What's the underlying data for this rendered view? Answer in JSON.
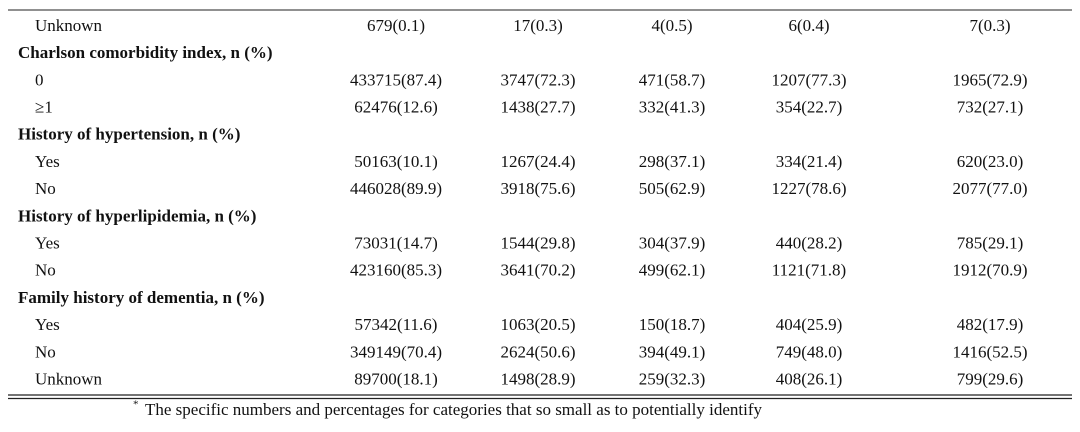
{
  "table": {
    "rows": [
      {
        "label": "Unknown",
        "cells": [
          "679(0.1)",
          "17(0.3)",
          "4(0.5)",
          "6(0.4)",
          "7(0.3)"
        ]
      },
      {
        "label": "Charlson comorbidity index, n (%)"
      },
      {
        "label": "0",
        "cells": [
          "433715(87.4)",
          "3747(72.3)",
          "471(58.7)",
          "1207(77.3)",
          "1965(72.9)"
        ]
      },
      {
        "label": "≥1",
        "cells": [
          "62476(12.6)",
          "1438(27.7)",
          "332(41.3)",
          "354(22.7)",
          "732(27.1)"
        ]
      },
      {
        "label": "History of hypertension, n (%)"
      },
      {
        "label": "Yes",
        "cells": [
          "50163(10.1)",
          "1267(24.4)",
          "298(37.1)",
          "334(21.4)",
          "620(23.0)"
        ]
      },
      {
        "label": "No",
        "cells": [
          "446028(89.9)",
          "3918(75.6)",
          "505(62.9)",
          "1227(78.6)",
          "2077(77.0)"
        ]
      },
      {
        "label": "History of hyperlipidemia, n (%)"
      },
      {
        "label": "Yes",
        "cells": [
          "73031(14.7)",
          "1544(29.8)",
          "304(37.9)",
          "440(28.2)",
          "785(29.1)"
        ]
      },
      {
        "label": "No",
        "cells": [
          "423160(85.3)",
          "3641(70.2)",
          "499(62.1)",
          "1121(71.8)",
          "1912(70.9)"
        ]
      },
      {
        "label": "Family history of dementia, n (%)"
      },
      {
        "label": "Yes",
        "cells": [
          "57342(11.6)",
          "1063(20.5)",
          "150(18.7)",
          "404(25.9)",
          "482(17.9)"
        ]
      },
      {
        "label": "No",
        "cells": [
          "349149(70.4)",
          "2624(50.6)",
          "394(49.1)",
          "749(48.0)",
          "1416(52.5)"
        ]
      },
      {
        "label": "Unknown",
        "cells": [
          "89700(18.1)",
          "1498(28.9)",
          "259(32.3)",
          "408(26.1)",
          "799(29.6)"
        ]
      }
    ]
  },
  "footnote": {
    "mark": "*",
    "text": "The specific numbers and percentages for categories that so small as to potentially identify"
  }
}
